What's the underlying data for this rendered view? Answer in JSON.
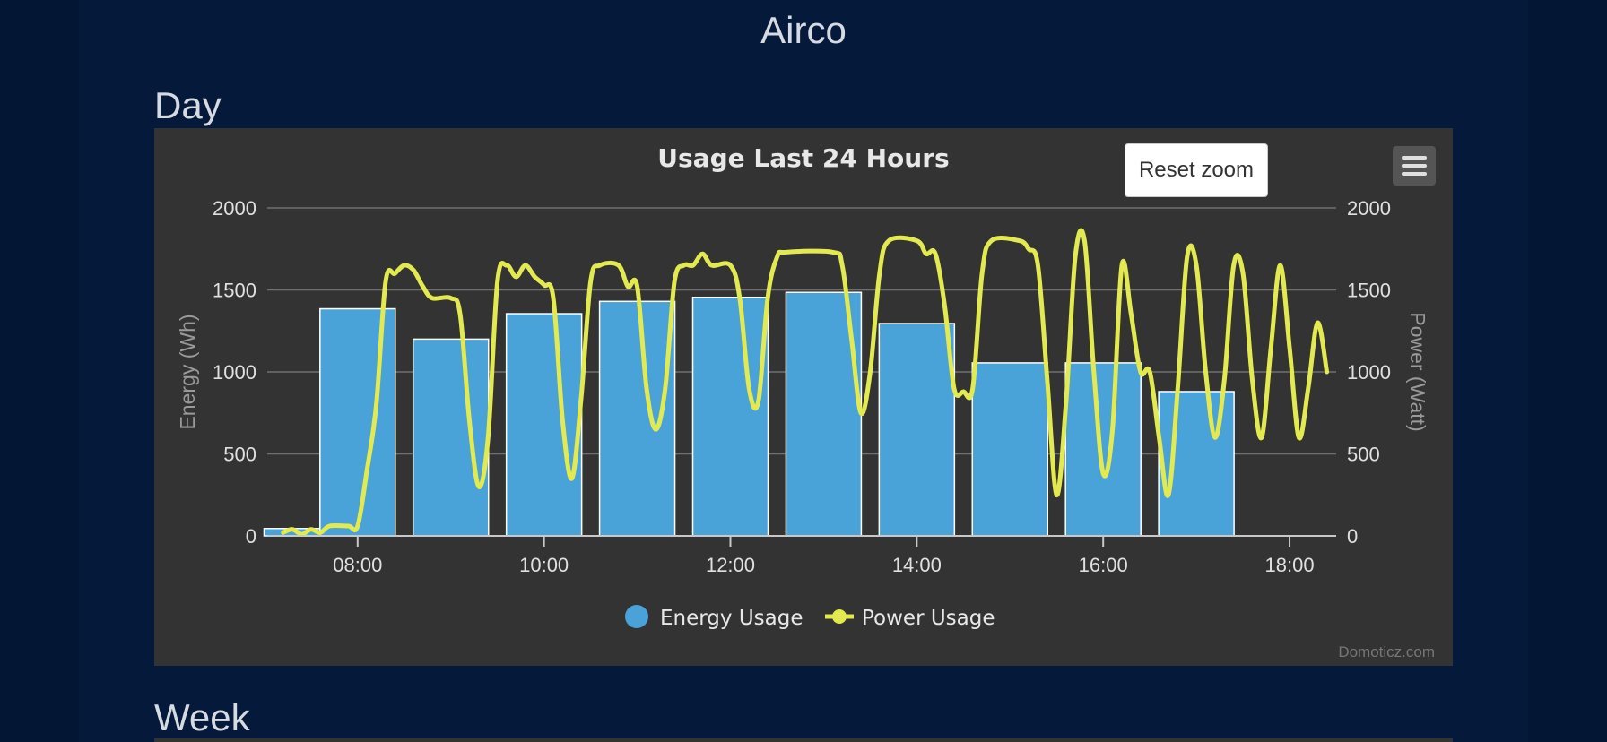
{
  "page": {
    "title": "Airco",
    "sections": [
      "Day",
      "Week"
    ]
  },
  "colors": {
    "background": "#031633",
    "panel": "#333333",
    "bar": "#4aa3d8",
    "line": "#e3ea4f",
    "grid": "#707070",
    "text": "#e0e0e0"
  },
  "toolbar": {
    "reset_zoom_label": "Reset zoom",
    "menu_icon": "hamburger-icon"
  },
  "credits": "Domoticz.com",
  "chart_data": {
    "type": "bar",
    "title": "Usage Last 24 Hours",
    "y_left_label": "Energy (Wh)",
    "y_right_label": "Power (Watt)",
    "ylim": [
      0,
      2000
    ],
    "y_ticks": [
      "0",
      "500",
      "1000",
      "1500",
      "2000"
    ],
    "x_ticks": [
      "08:00",
      "10:00",
      "12:00",
      "14:00",
      "16:00",
      "18:00"
    ],
    "x_tick_hours": [
      8,
      10,
      12,
      14,
      16,
      18
    ],
    "xlim_hours": [
      7.03,
      18.5
    ],
    "grid": true,
    "legend_position": "bottom",
    "series": [
      {
        "name": "Energy Usage",
        "type": "bar",
        "hours": [
          7.4,
          8.0,
          9.0,
          10.0,
          11.0,
          12.0,
          13.0,
          14.0,
          15.0,
          16.0,
          17.0
        ],
        "values": [
          45,
          1385,
          1200,
          1355,
          1430,
          1455,
          1485,
          1295,
          1055,
          1055,
          880
        ]
      },
      {
        "name": "Power Usage",
        "type": "line",
        "points": [
          [
            7.2,
            20
          ],
          [
            7.3,
            40
          ],
          [
            7.4,
            10
          ],
          [
            7.5,
            40
          ],
          [
            7.6,
            20
          ],
          [
            7.7,
            60
          ],
          [
            7.9,
            60
          ],
          [
            8.0,
            60
          ],
          [
            8.1,
            400
          ],
          [
            8.2,
            800
          ],
          [
            8.3,
            1550
          ],
          [
            8.4,
            1600
          ],
          [
            8.5,
            1650
          ],
          [
            8.6,
            1620
          ],
          [
            8.7,
            1520
          ],
          [
            8.8,
            1450
          ],
          [
            9.0,
            1450
          ],
          [
            9.1,
            1350
          ],
          [
            9.2,
            700
          ],
          [
            9.3,
            300
          ],
          [
            9.4,
            600
          ],
          [
            9.5,
            1550
          ],
          [
            9.6,
            1650
          ],
          [
            9.7,
            1580
          ],
          [
            9.8,
            1650
          ],
          [
            9.9,
            1580
          ],
          [
            10.0,
            1530
          ],
          [
            10.1,
            1450
          ],
          [
            10.2,
            700
          ],
          [
            10.3,
            350
          ],
          [
            10.4,
            850
          ],
          [
            10.5,
            1550
          ],
          [
            10.6,
            1650
          ],
          [
            10.8,
            1650
          ],
          [
            10.9,
            1520
          ],
          [
            11.0,
            1520
          ],
          [
            11.1,
            900
          ],
          [
            11.2,
            650
          ],
          [
            11.3,
            900
          ],
          [
            11.4,
            1550
          ],
          [
            11.5,
            1650
          ],
          [
            11.6,
            1650
          ],
          [
            11.7,
            1720
          ],
          [
            11.8,
            1650
          ],
          [
            12.0,
            1650
          ],
          [
            12.1,
            1450
          ],
          [
            12.2,
            900
          ],
          [
            12.3,
            820
          ],
          [
            12.4,
            1450
          ],
          [
            12.5,
            1700
          ],
          [
            12.6,
            1730
          ],
          [
            13.1,
            1730
          ],
          [
            13.2,
            1650
          ],
          [
            13.3,
            1200
          ],
          [
            13.4,
            750
          ],
          [
            13.5,
            1000
          ],
          [
            13.6,
            1600
          ],
          [
            13.7,
            1800
          ],
          [
            14.0,
            1800
          ],
          [
            14.1,
            1720
          ],
          [
            14.2,
            1720
          ],
          [
            14.3,
            1400
          ],
          [
            14.4,
            900
          ],
          [
            14.5,
            880
          ],
          [
            14.6,
            900
          ],
          [
            14.7,
            1600
          ],
          [
            14.8,
            1800
          ],
          [
            15.1,
            1800
          ],
          [
            15.2,
            1750
          ],
          [
            15.3,
            1650
          ],
          [
            15.4,
            950
          ],
          [
            15.5,
            250
          ],
          [
            15.6,
            800
          ],
          [
            15.7,
            1700
          ],
          [
            15.8,
            1800
          ],
          [
            15.9,
            1000
          ],
          [
            16.0,
            380
          ],
          [
            16.1,
            650
          ],
          [
            16.2,
            1650
          ],
          [
            16.3,
            1350
          ],
          [
            16.4,
            1000
          ],
          [
            16.5,
            1000
          ],
          [
            16.6,
            600
          ],
          [
            16.7,
            250
          ],
          [
            16.8,
            900
          ],
          [
            16.9,
            1700
          ],
          [
            17.0,
            1650
          ],
          [
            17.1,
            1000
          ],
          [
            17.2,
            600
          ],
          [
            17.3,
            950
          ],
          [
            17.4,
            1650
          ],
          [
            17.5,
            1600
          ],
          [
            17.6,
            950
          ],
          [
            17.7,
            600
          ],
          [
            17.8,
            1150
          ],
          [
            17.9,
            1650
          ],
          [
            18.0,
            1150
          ],
          [
            18.1,
            600
          ],
          [
            18.2,
            900
          ],
          [
            18.3,
            1300
          ],
          [
            18.4,
            1000
          ]
        ]
      }
    ]
  }
}
